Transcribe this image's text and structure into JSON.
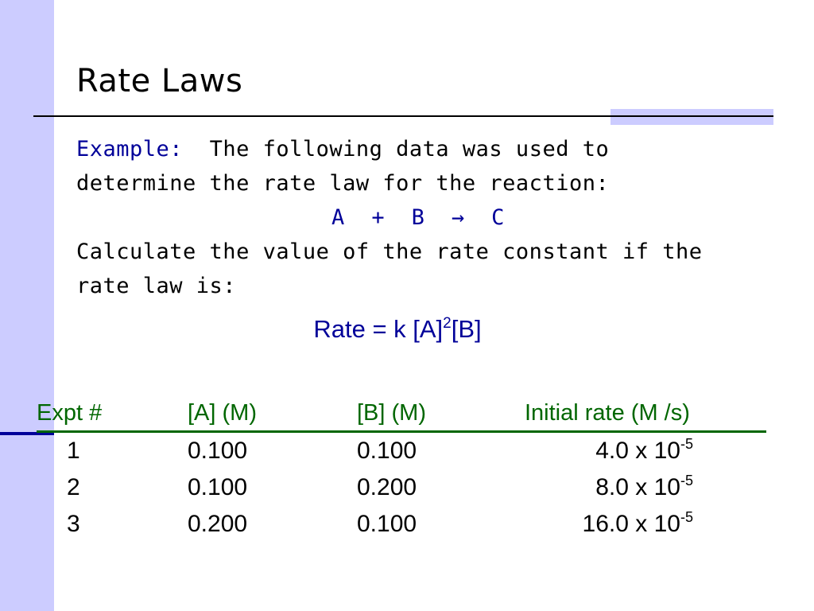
{
  "slide": {
    "title": "Rate Laws",
    "example_label": "Example:",
    "intro_line1": "The following data was used to",
    "intro_line2": "determine the rate law for the reaction:",
    "reaction": {
      "reactant1": "A",
      "plus": "+",
      "reactant2": "B",
      "arrow": "→",
      "product": "C"
    },
    "question_line1": "Calculate the value of the rate constant if the",
    "question_line2": "rate law is:",
    "rate_law": {
      "prefix": "Rate = k [A]",
      "exponent": "2",
      "suffix": "[B]"
    }
  },
  "table": {
    "headers": [
      "Expt #",
      "[A] (M)",
      "[B] (M)",
      "Initial rate (M /s)"
    ],
    "rows": [
      {
        "expt": "1",
        "a": "0.100",
        "b": "0.100",
        "rate_base": "4.0 x 10",
        "rate_exp": "-5"
      },
      {
        "expt": "2",
        "a": "0.100",
        "b": "0.200",
        "rate_base": "8.0 x 10",
        "rate_exp": "-5"
      },
      {
        "expt": "3",
        "a": "0.200",
        "b": "0.100",
        "rate_base": "16.0 x 10",
        "rate_exp": "-5"
      }
    ]
  },
  "colors": {
    "accent_bar": "#ccccff",
    "label_blue": "#000099",
    "header_green": "#006600"
  }
}
